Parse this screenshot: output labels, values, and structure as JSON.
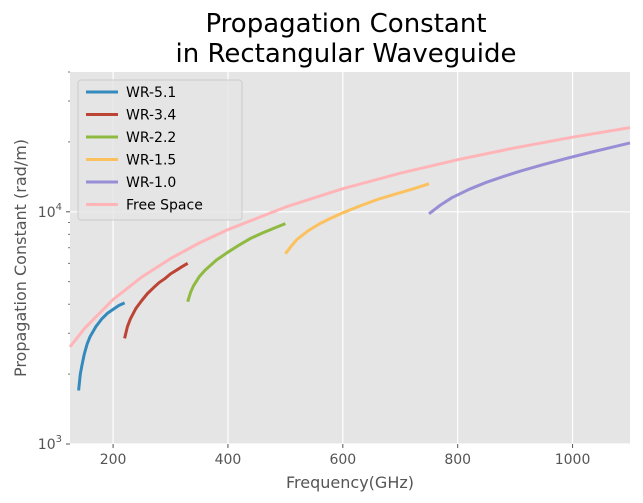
{
  "chart_data": {
    "type": "line",
    "title_lines": [
      "Propagation Constant",
      "in Rectangular Waveguide"
    ],
    "xlabel": "Frequency(GHz)",
    "ylabel": "Propagation Constant (rad/m)",
    "xlim": [
      125,
      1100
    ],
    "ylim": [
      1000,
      40000
    ],
    "yscale": "log",
    "grid": true,
    "legend_position": "top-left",
    "x_ticks": [
      {
        "value": 200,
        "label": "200"
      },
      {
        "value": 400,
        "label": "400"
      },
      {
        "value": 600,
        "label": "600"
      },
      {
        "value": 800,
        "label": "800"
      },
      {
        "value": 1000,
        "label": "1000"
      }
    ],
    "y_ticks": [
      {
        "value": 1000,
        "base": "10",
        "exp": "3"
      },
      {
        "value": 10000,
        "base": "10",
        "exp": "4"
      }
    ],
    "series": [
      {
        "name": "WR-5.1",
        "color": "#348ABD",
        "x": [
          140,
          143,
          146,
          150,
          155,
          160,
          170,
          180,
          190,
          200,
          210,
          220
        ],
        "y": [
          1700,
          2000,
          2200,
          2450,
          2700,
          2900,
          3200,
          3450,
          3650,
          3800,
          3950,
          4050
        ]
      },
      {
        "name": "WR-3.4",
        "color": "#A60628",
        "x": [
          220,
          225,
          230,
          240,
          250,
          260,
          270,
          280,
          290,
          300,
          310,
          320,
          330
        ],
        "y": [
          2850,
          3200,
          3450,
          3850,
          4150,
          4450,
          4700,
          4950,
          5150,
          5400,
          5600,
          5800,
          6000
        ]
      },
      {
        "name": "WR-2.2",
        "color": "#7A68A6",
        "x": [
          330,
          335,
          340,
          350,
          360,
          380,
          400,
          420,
          440,
          460,
          480,
          500
        ],
        "y": [
          4100,
          4500,
          4800,
          5250,
          5600,
          6200,
          6700,
          7200,
          7700,
          8100,
          8500,
          8900
        ]
      },
      {
        "name": "WR-1.5",
        "color": "#467821",
        "x": [
          500,
          510,
          520,
          540,
          560,
          580,
          600,
          630,
          660,
          690,
          720,
          750
        ],
        "y": [
          6600,
          7100,
          7600,
          8300,
          8900,
          9400,
          9900,
          10600,
          11300,
          11900,
          12500,
          13200
        ]
      },
      {
        "name": "WR-1.0",
        "color": "#D55E00",
        "x": [
          750,
          770,
          790,
          820,
          850,
          880,
          910,
          950,
          990,
          1030,
          1070,
          1100
        ],
        "y": [
          9800,
          10700,
          11500,
          12500,
          13400,
          14200,
          15000,
          16000,
          17000,
          18000,
          19000,
          19800
        ]
      },
      {
        "name": "Free Space",
        "color": "#CC79A7",
        "x": [
          125,
          150,
          200,
          250,
          300,
          350,
          400,
          500,
          600,
          700,
          800,
          900,
          1000,
          1100
        ],
        "y": [
          2620,
          3140,
          4190,
          5240,
          6290,
          7340,
          8380,
          10480,
          12580,
          14670,
          16770,
          18860,
          20960,
          23050
        ]
      }
    ],
    "series_colors": [
      "#348ABD",
      "#BC4434",
      "#8EBA42",
      "#FBC15E",
      "#988ED5",
      "#FFB5B8"
    ]
  }
}
